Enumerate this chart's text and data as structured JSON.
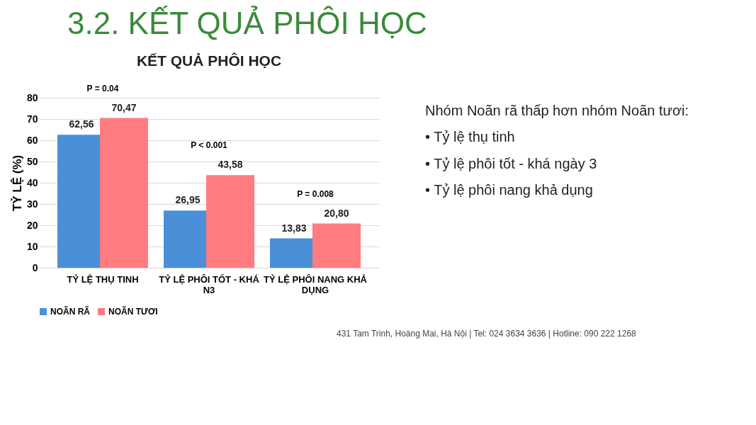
{
  "chart_data": {
    "type": "bar",
    "title": "KẾT QUẢ PHÔI HỌC",
    "ylabel": "TỶ LỆ (%)",
    "categories": [
      "TỶ LỆ THỤ TINH",
      "TỶ LỆ PHÔI TỐT - KHÁ N3",
      "TỶ LỆ PHÔI NANG KHẢ DỤNG"
    ],
    "series": [
      {
        "name": "NOÃN RÃ",
        "color": "#4a90d9",
        "values": [
          62.56,
          26.95,
          13.83
        ]
      },
      {
        "name": "NOÃN TƯƠI",
        "color": "#ff7c80",
        "values": [
          70.47,
          43.58,
          20.8
        ]
      }
    ],
    "value_labels": [
      [
        "62,56",
        "26,95",
        "13,83"
      ],
      [
        "70,47",
        "43,58",
        "20,80"
      ]
    ],
    "ylim": [
      0,
      80
    ],
    "yticks": [
      0,
      10,
      20,
      30,
      40,
      50,
      60,
      70,
      80
    ],
    "grid": "y",
    "legend": "bottom",
    "annotations": [
      "P = 0.04",
      "P < 0.001",
      "P = 0.008",
      "3.2. KẾT QUẢ PHÔI HỌC",
      "Nhóm Noãn rã thấp hơn nhóm Noãn tươi:",
      "•   Tỷ lệ thụ tinh",
      "•   Tỷ lệ phôi tốt - khá ngày 3",
      "•   Tỷ lệ phôi nang khả dụng",
      "431 Tam Trinh, Hoàng Mai, Hà Nội   |   Tel: 024 3634 3636   |   Hotline: 090 222 1268"
    ]
  }
}
